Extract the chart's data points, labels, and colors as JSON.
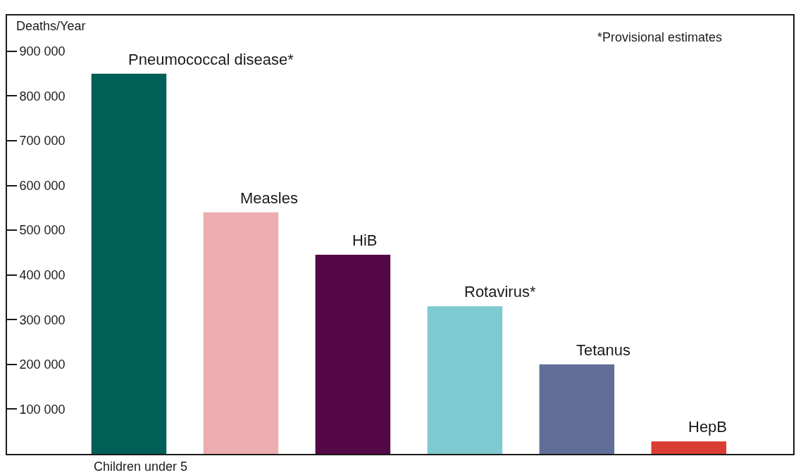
{
  "chart_data": {
    "type": "bar",
    "ylabel": "Deaths/Year",
    "xlabel": "Children under 5",
    "categories": [
      null
    ],
    "series": [
      {
        "name": "Pneumococcal disease*",
        "color": "#005f56",
        "values": [
          850000
        ]
      },
      {
        "name": "Measles",
        "color": "#edadb0",
        "values": [
          540000
        ]
      },
      {
        "name": "HiB",
        "color": "#540845",
        "values": [
          445000
        ]
      },
      {
        "name": "Rotavirus*",
        "color": "#7dcbd1",
        "values": [
          330000
        ]
      },
      {
        "name": "Tetanus",
        "color": "#616f98",
        "values": [
          200000
        ]
      },
      {
        "name": "HepB",
        "color": "#db3c34",
        "values": [
          28000
        ]
      }
    ],
    "ylim": [
      0,
      980000
    ],
    "yticks": [
      {
        "value": 100000,
        "label": "100 000"
      },
      {
        "value": 200000,
        "label": "200 000"
      },
      {
        "value": 300000,
        "label": "300 000"
      },
      {
        "value": 400000,
        "label": "400 000"
      },
      {
        "value": 500000,
        "label": "500 000"
      },
      {
        "value": 600000,
        "label": "600 000"
      },
      {
        "value": 700000,
        "label": "700 000"
      },
      {
        "value": 800000,
        "label": "800 000"
      },
      {
        "value": 900000,
        "label": "900 000"
      }
    ],
    "annotations": [
      "*Provisional estimates"
    ],
    "grid": false,
    "legend": false
  }
}
